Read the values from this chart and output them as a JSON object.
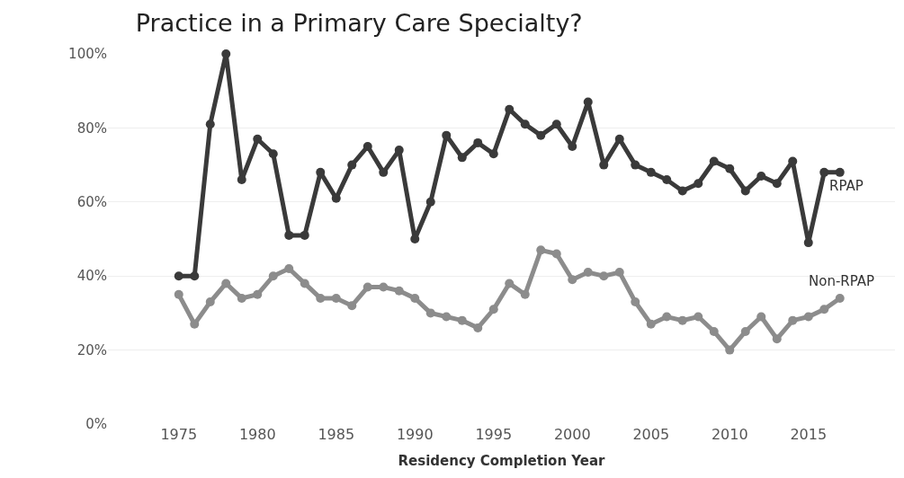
{
  "chart_data": {
    "type": "line",
    "title": "Practice in a Primary Care Specialty?",
    "xlabel": "Residency Completion Year",
    "x": [
      1975,
      1976,
      1977,
      1978,
      1979,
      1980,
      1981,
      1982,
      1983,
      1984,
      1985,
      1986,
      1987,
      1988,
      1989,
      1990,
      1991,
      1992,
      1993,
      1994,
      1995,
      1996,
      1997,
      1998,
      1999,
      2000,
      2001,
      2002,
      2003,
      2004,
      2005,
      2006,
      2007,
      2008,
      2009,
      2010,
      2011,
      2012,
      2013,
      2014,
      2015,
      2016,
      2017
    ],
    "series": [
      {
        "name": "RPAP",
        "color": "#3a3a3a",
        "values": [
          40,
          40,
          81,
          100,
          66,
          77,
          73,
          51,
          51,
          68,
          61,
          70,
          75,
          68,
          74,
          50,
          60,
          78,
          72,
          76,
          73,
          85,
          81,
          78,
          81,
          75,
          87,
          70,
          77,
          70,
          68,
          66,
          63,
          65,
          71,
          69,
          63,
          67,
          65,
          71,
          49,
          68,
          68
        ]
      },
      {
        "name": "Non-RPAP",
        "color": "#8c8c8c",
        "values": [
          35,
          27,
          33,
          38,
          34,
          35,
          40,
          42,
          38,
          34,
          34,
          32,
          37,
          37,
          36,
          34,
          30,
          29,
          28,
          26,
          31,
          38,
          35,
          47,
          46,
          39,
          41,
          40,
          41,
          33,
          27,
          29,
          28,
          29,
          25,
          20,
          25,
          29,
          23,
          28,
          29,
          31,
          34
        ]
      }
    ],
    "xlim": [
      1970.5,
      2020.5
    ],
    "xticks": [
      1975,
      1980,
      1985,
      1990,
      1995,
      2000,
      2005,
      2010,
      2015
    ],
    "ylim": [
      0,
      100
    ],
    "yticks": [
      {
        "value": 0,
        "label": "0%"
      },
      {
        "value": 20,
        "label": "20%"
      },
      {
        "value": 40,
        "label": "40%"
      },
      {
        "value": 60,
        "label": "60%"
      },
      {
        "value": 80,
        "label": "80%"
      },
      {
        "value": 100,
        "label": "100%"
      }
    ],
    "grid": "y",
    "legend": false,
    "marker": "circle",
    "line_style": "solid"
  }
}
